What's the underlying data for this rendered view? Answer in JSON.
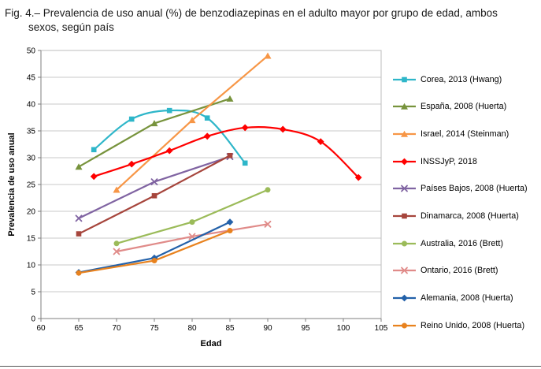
{
  "figure": {
    "caption": "Fig. 4.– Prevalencia de uso anual (%) de benzodiazepinas en el adulto mayor por grupo de edad, ambos sexos, según país"
  },
  "chart_data": {
    "type": "line",
    "title": "",
    "xlabel": "Edad",
    "ylabel": "Prevalencia de uso anual",
    "xlim": [
      60,
      105
    ],
    "ylim": [
      0,
      50
    ],
    "xticks": [
      60,
      65,
      70,
      75,
      80,
      85,
      90,
      95,
      100,
      105
    ],
    "yticks": [
      0,
      5,
      10,
      15,
      20,
      25,
      30,
      35,
      40,
      45,
      50
    ],
    "grid": "horizontal",
    "legend_position": "right",
    "series": [
      {
        "name": "Corea, 2013 (Hwang)",
        "color": "#2EB6C9",
        "marker": "square",
        "smooth": true,
        "data": [
          [
            67,
            31.5
          ],
          [
            72,
            37.2
          ],
          [
            77,
            38.8
          ],
          [
            82,
            37.4
          ],
          [
            87,
            29.0
          ]
        ]
      },
      {
        "name": "España, 2008 (Huerta)",
        "color": "#77933C",
        "marker": "triangle",
        "smooth": false,
        "data": [
          [
            65,
            28.3
          ],
          [
            75,
            36.4
          ],
          [
            85,
            41.0
          ]
        ]
      },
      {
        "name": "Israel, 2014 (Steinman)",
        "color": "#F79646",
        "marker": "triangle",
        "smooth": false,
        "data": [
          [
            70,
            24.0
          ],
          [
            80,
            37.0
          ],
          [
            90,
            49.0
          ]
        ]
      },
      {
        "name": "INSSJyP, 2018",
        "color": "#FF0000",
        "marker": "diamond",
        "smooth": true,
        "data": [
          [
            67,
            26.5
          ],
          [
            72,
            28.8
          ],
          [
            77,
            31.3
          ],
          [
            82,
            34.0
          ],
          [
            87,
            35.6
          ],
          [
            92,
            35.3
          ],
          [
            97,
            33.0
          ],
          [
            102,
            26.3
          ]
        ]
      },
      {
        "name": "Países Bajos, 2008 (Huerta)",
        "color": "#8064A2",
        "marker": "x",
        "smooth": false,
        "data": [
          [
            65,
            18.7
          ],
          [
            75,
            25.5
          ],
          [
            85,
            30.2
          ]
        ]
      },
      {
        "name": "Dinamarca, 2008 (Huerta)",
        "color": "#A6453C",
        "marker": "square",
        "smooth": false,
        "data": [
          [
            65,
            15.8
          ],
          [
            75,
            22.9
          ],
          [
            85,
            30.4
          ]
        ]
      },
      {
        "name": "Australia, 2016 (Brett)",
        "color": "#9BBB59",
        "marker": "circle",
        "smooth": false,
        "data": [
          [
            70,
            14.0
          ],
          [
            80,
            18.0
          ],
          [
            90,
            24.0
          ]
        ]
      },
      {
        "name": "Ontario, 2016 (Brett)",
        "color": "#E08B89",
        "marker": "x",
        "smooth": false,
        "data": [
          [
            70,
            12.5
          ],
          [
            80,
            15.3
          ],
          [
            90,
            17.6
          ]
        ]
      },
      {
        "name": "Alemania, 2008 (Huerta)",
        "color": "#2361A9",
        "marker": "diamond",
        "smooth": false,
        "data": [
          [
            65,
            8.6
          ],
          [
            75,
            11.3
          ],
          [
            85,
            18.0
          ]
        ]
      },
      {
        "name": "Reino Unido, 2008 (Huerta)",
        "color": "#E8821E",
        "marker": "circle",
        "smooth": false,
        "data": [
          [
            65,
            8.5
          ],
          [
            75,
            10.8
          ],
          [
            85,
            16.4
          ]
        ]
      }
    ]
  }
}
